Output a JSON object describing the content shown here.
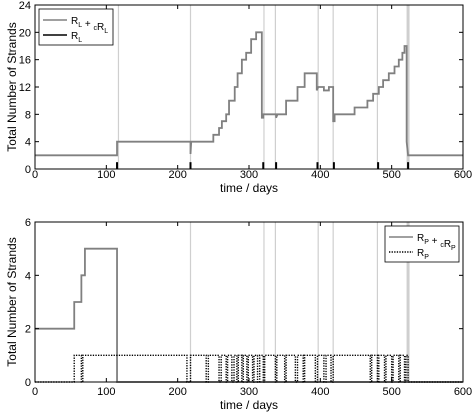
{
  "chart_data": [
    {
      "type": "line",
      "xlabel": "time / days",
      "ylabel": "Total Number of Strands",
      "xlim": [
        0,
        600
      ],
      "ylim": [
        0,
        24
      ],
      "xticks": [
        "0",
        "100",
        "200",
        "300",
        "400",
        "500",
        "600"
      ],
      "yticks": [
        "0",
        "4",
        "8",
        "12",
        "16",
        "20",
        "24"
      ],
      "legend": {
        "placement": "top-left",
        "entries": [
          {
            "label": "R",
            "sub": "L",
            "label2": " + ",
            "csub": "c",
            "label3": "R",
            "sub2": "L",
            "color": "#808080",
            "style": "solid"
          },
          {
            "label": "R",
            "sub": "L",
            "color": "#000000",
            "style": "solid"
          }
        ]
      },
      "vertical_lines": [
        117,
        218,
        321,
        337,
        397,
        418,
        480,
        523
      ],
      "series": [
        {
          "color": "#808080",
          "points": [
            [
              0,
              2
            ],
            [
              115,
              2
            ],
            [
              115,
              4
            ],
            [
              218,
              4
            ],
            [
              218,
              2.2
            ],
            [
              219,
              4
            ],
            [
              250,
              4
            ],
            [
              250,
              5
            ],
            [
              258,
              5
            ],
            [
              258,
              6
            ],
            [
              262,
              6
            ],
            [
              262,
              7
            ],
            [
              268,
              7
            ],
            [
              268,
              8
            ],
            [
              272,
              8
            ],
            [
              272,
              10
            ],
            [
              280,
              10
            ],
            [
              280,
              12
            ],
            [
              284,
              12
            ],
            [
              284,
              14
            ],
            [
              290,
              14
            ],
            [
              290,
              16
            ],
            [
              296,
              16
            ],
            [
              296,
              17
            ],
            [
              303,
              17
            ],
            [
              303,
              19
            ],
            [
              310,
              19
            ],
            [
              310,
              20
            ],
            [
              318,
              20
            ],
            [
              318,
              7.5
            ],
            [
              320,
              7.5
            ],
            [
              320,
              8
            ],
            [
              338,
              8
            ],
            [
              338,
              7.5
            ],
            [
              340,
              8
            ],
            [
              352,
              8
            ],
            [
              352,
              10
            ],
            [
              368,
              10
            ],
            [
              368,
              12
            ],
            [
              378,
              12
            ],
            [
              378,
              14
            ],
            [
              395,
              14
            ],
            [
              395,
              11.5
            ],
            [
              397,
              12
            ],
            [
              405,
              12
            ],
            [
              405,
              11.5
            ],
            [
              412,
              11.5
            ],
            [
              412,
              12
            ],
            [
              418,
              12
            ],
            [
              418,
              7
            ],
            [
              420,
              7
            ],
            [
              420,
              8
            ],
            [
              448,
              8
            ],
            [
              448,
              9
            ],
            [
              466,
              9
            ],
            [
              466,
              10
            ],
            [
              474,
              10
            ],
            [
              474,
              11
            ],
            [
              482,
              11
            ],
            [
              482,
              12
            ],
            [
              488,
              12
            ],
            [
              488,
              13
            ],
            [
              496,
              13
            ],
            [
              496,
              14
            ],
            [
              504,
              14
            ],
            [
              504,
              15
            ],
            [
              510,
              15
            ],
            [
              510,
              16
            ],
            [
              515,
              16
            ],
            [
              515,
              17
            ],
            [
              518,
              17
            ],
            [
              518,
              18
            ],
            [
              521,
              18
            ],
            [
              521,
              4
            ],
            [
              523,
              2
            ],
            [
              600,
              2
            ]
          ]
        },
        {
          "color": "#000000",
          "points": []
        }
      ]
    },
    {
      "type": "line",
      "xlabel": "time / days",
      "ylabel": "Total Number of Strands",
      "xlim": [
        0,
        600
      ],
      "ylim": [
        0,
        6
      ],
      "xticks": [
        "0",
        "100",
        "200",
        "300",
        "400",
        "500",
        "600"
      ],
      "yticks": [
        "0",
        "2",
        "4",
        "6"
      ],
      "legend": {
        "placement": "top-right",
        "entries": [
          {
            "label": "R",
            "sub": "P",
            "label2": " + ",
            "csub": "c",
            "label3": "R",
            "sub2": "P",
            "color": "#808080",
            "style": "solid"
          },
          {
            "label": "R",
            "sub": "P",
            "color": "#000000",
            "style": "dotted"
          }
        ]
      },
      "vertical_lines": [
        218,
        321,
        337,
        397,
        418,
        480,
        523
      ],
      "series": [
        {
          "color": "#808080",
          "points": [
            [
              0,
              2
            ],
            [
              55,
              2
            ],
            [
              55,
              3
            ],
            [
              65,
              3
            ],
            [
              65,
              4
            ],
            [
              70,
              4
            ],
            [
              70,
              5
            ],
            [
              115,
              5
            ],
            [
              115,
              0
            ],
            [
              600,
              0
            ]
          ]
        },
        {
          "color": "#000000",
          "dotted": true,
          "points": [
            [
              0,
              0
            ],
            [
              55,
              0
            ],
            [
              55,
              1
            ],
            [
              65,
              1
            ],
            [
              65,
              0
            ],
            [
              67,
              0
            ],
            [
              67,
              1
            ],
            [
              115,
              1
            ],
            [
              115,
              1
            ],
            [
              213,
              1
            ],
            [
              213,
              0
            ],
            [
              218,
              0
            ],
            [
              218,
              1
            ],
            [
              240,
              1
            ],
            [
              240,
              0
            ],
            [
              243,
              0
            ],
            [
              243,
              1
            ],
            [
              258,
              1
            ],
            [
              258,
              0
            ],
            [
              261,
              0
            ],
            [
              261,
              1
            ],
            [
              268,
              1
            ],
            [
              268,
              0
            ],
            [
              270,
              0
            ],
            [
              270,
              1
            ],
            [
              276,
              1
            ],
            [
              276,
              0
            ],
            [
              279,
              0
            ],
            [
              279,
              1
            ],
            [
              283,
              1
            ],
            [
              283,
              0
            ],
            [
              285,
              0
            ],
            [
              285,
              1
            ],
            [
              290,
              1
            ],
            [
              290,
              0
            ],
            [
              292,
              0
            ],
            [
              292,
              1
            ],
            [
              297,
              1
            ],
            [
              297,
              0
            ],
            [
              299,
              0
            ],
            [
              299,
              1
            ],
            [
              305,
              1
            ],
            [
              305,
              0
            ],
            [
              307,
              0
            ],
            [
              307,
              1
            ],
            [
              312,
              1
            ],
            [
              312,
              0
            ],
            [
              315,
              0
            ],
            [
              315,
              1
            ],
            [
              320,
              1
            ],
            [
              320,
              0
            ],
            [
              322,
              0
            ],
            [
              322,
              1
            ],
            [
              337,
              1
            ],
            [
              337,
              0
            ],
            [
              339,
              0
            ],
            [
              339,
              1
            ],
            [
              350,
              1
            ],
            [
              350,
              0
            ],
            [
              352,
              0
            ],
            [
              352,
              1
            ],
            [
              365,
              1
            ],
            [
              365,
              0
            ],
            [
              368,
              0
            ],
            [
              368,
              1
            ],
            [
              376,
              1
            ],
            [
              376,
              0
            ],
            [
              378,
              0
            ],
            [
              378,
              1
            ],
            [
              393,
              1
            ],
            [
              393,
              0
            ],
            [
              396,
              0
            ],
            [
              396,
              1
            ],
            [
              405,
              1
            ],
            [
              405,
              0
            ],
            [
              408,
              0
            ],
            [
              408,
              1
            ],
            [
              415,
              1
            ],
            [
              415,
              0
            ],
            [
              418,
              0
            ],
            [
              418,
              1
            ],
            [
              470,
              1
            ],
            [
              470,
              0
            ],
            [
              472,
              0
            ],
            [
              472,
              1
            ],
            [
              480,
              1
            ],
            [
              480,
              0
            ],
            [
              482,
              0
            ],
            [
              482,
              1
            ],
            [
              490,
              1
            ],
            [
              490,
              0
            ],
            [
              492,
              0
            ],
            [
              492,
              1
            ],
            [
              500,
              1
            ],
            [
              500,
              0
            ],
            [
              502,
              0
            ],
            [
              502,
              1
            ],
            [
              510,
              1
            ],
            [
              510,
              0
            ],
            [
              512,
              0
            ],
            [
              512,
              1
            ],
            [
              518,
              1
            ],
            [
              518,
              0
            ],
            [
              520,
              0
            ],
            [
              520,
              1
            ],
            [
              523,
              1
            ],
            [
              523,
              0
            ],
            [
              600,
              0
            ]
          ]
        }
      ]
    }
  ]
}
